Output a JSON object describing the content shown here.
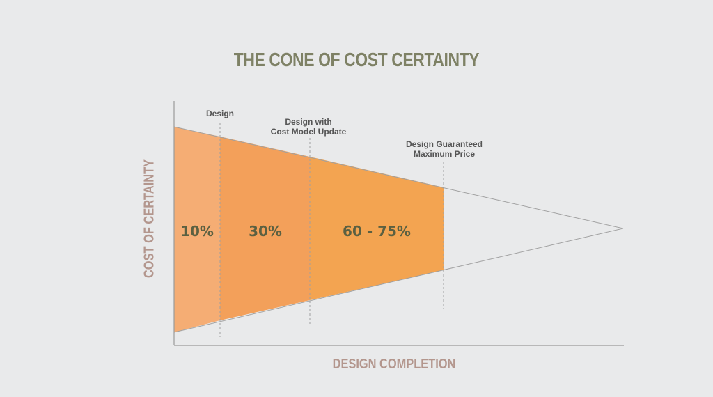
{
  "title": "THE CONE OF COST CERTAINTY",
  "y_axis_label": "COST OF CERTAINTY",
  "x_axis_label": "DESIGN COMPLETION",
  "milestones": [
    {
      "label_line1": "Design",
      "label_line2": ""
    },
    {
      "label_line1": "Design with",
      "label_line2": "Cost Model Update"
    },
    {
      "label_line1": "Design Guaranteed",
      "label_line2": "Maximum Price"
    }
  ],
  "segments": [
    {
      "label": "10%",
      "fill": "#f5ad74"
    },
    {
      "label": "30%",
      "fill": "#f3a05a"
    },
    {
      "label": "60 - 75%",
      "fill": "#f3a451"
    }
  ],
  "colors": {
    "background": "#e9eaeb",
    "title": "#7e8165",
    "axis_labels": "#b3968d",
    "percent_text": "#5b6041",
    "annotation_text": "#555555",
    "axis_line": "#9a9a9a",
    "cone_outline": "#a0a0a0"
  }
}
